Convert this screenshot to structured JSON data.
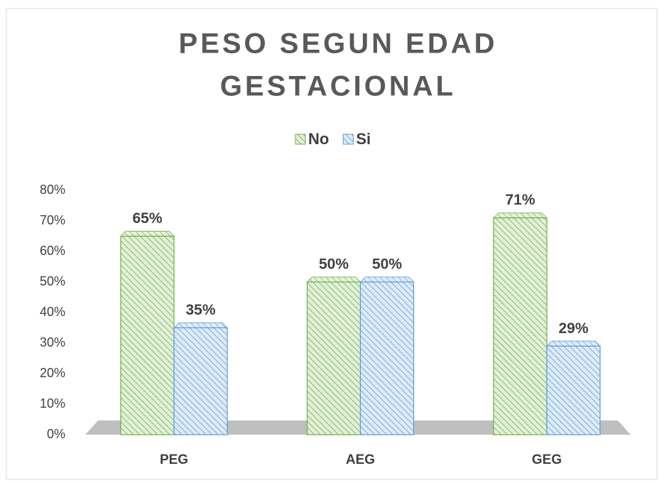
{
  "chart_data": {
    "type": "bar",
    "title": [
      "PESO SEGUN EDAD",
      "GESTACIONAL"
    ],
    "categories": [
      "PEG",
      "AEG",
      "GEG"
    ],
    "series": [
      {
        "name": "No",
        "color": "#70ad47",
        "values": [
          65,
          50,
          71
        ],
        "value_labels": [
          "65%",
          "50%",
          "71%"
        ]
      },
      {
        "name": "Si",
        "color": "#5b9bd5",
        "values": [
          35,
          50,
          29
        ],
        "value_labels": [
          "35%",
          "50%",
          "29%"
        ]
      }
    ],
    "ylim": [
      0,
      80
    ],
    "yticks": [
      {
        "value": 0,
        "label": "0%"
      },
      {
        "value": 10,
        "label": "10%"
      },
      {
        "value": 20,
        "label": "20%"
      },
      {
        "value": 30,
        "label": "30%"
      },
      {
        "value": 40,
        "label": "40%"
      },
      {
        "value": 50,
        "label": "50%"
      },
      {
        "value": 60,
        "label": "60%"
      },
      {
        "value": 70,
        "label": "70%"
      },
      {
        "value": 80,
        "label": "80%"
      }
    ],
    "grid": false
  }
}
